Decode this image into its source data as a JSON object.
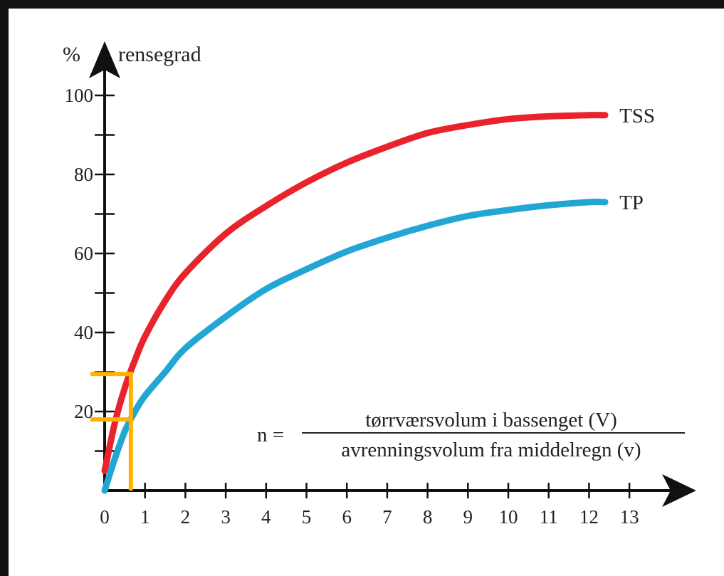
{
  "chart_data": {
    "type": "line",
    "y_unit": "%",
    "ylabel": "rensegrad",
    "xlim": [
      0,
      13
    ],
    "ylim": [
      0,
      100
    ],
    "x_ticks": [
      0,
      1,
      2,
      3,
      4,
      5,
      6,
      7,
      8,
      9,
      10,
      11,
      12,
      13
    ],
    "y_ticks": [
      20,
      40,
      60,
      80,
      100
    ],
    "y_minor_ticks": [
      10,
      30,
      50,
      70,
      90
    ],
    "x_formula": {
      "lhs": "n =",
      "numerator": "tørrværsvolum i bassenget (V)",
      "denominator": "avrenningsvolum fra middelregn (v)"
    },
    "series": [
      {
        "name": "TSS",
        "color": "#e8232b",
        "x": [
          0,
          0.25,
          0.5,
          0.75,
          1,
          1.5,
          2,
          3,
          4,
          5,
          6,
          7,
          8,
          9,
          10,
          11,
          12,
          12.4
        ],
        "y": [
          5,
          17,
          26,
          33,
          39,
          48,
          55,
          65,
          72,
          78,
          83,
          87,
          90.5,
          92.5,
          94,
          94.7,
          95,
          95
        ]
      },
      {
        "name": "TP",
        "color": "#22a6d4",
        "x": [
          0,
          0.25,
          0.5,
          0.75,
          1,
          1.5,
          2,
          3,
          4,
          5,
          6,
          7,
          8,
          9,
          10,
          11,
          12,
          12.4
        ],
        "y": [
          0,
          8,
          15,
          20,
          24,
          30,
          36,
          44,
          51,
          56,
          60.5,
          64,
          67,
          69.5,
          71,
          72.2,
          73,
          73
        ]
      }
    ],
    "annotations": [
      {
        "type": "marker",
        "color": "#ffb300",
        "x": 0.65,
        "y_levels": [
          18,
          29.5
        ]
      }
    ],
    "grid": false,
    "legend": "inline-right"
  }
}
